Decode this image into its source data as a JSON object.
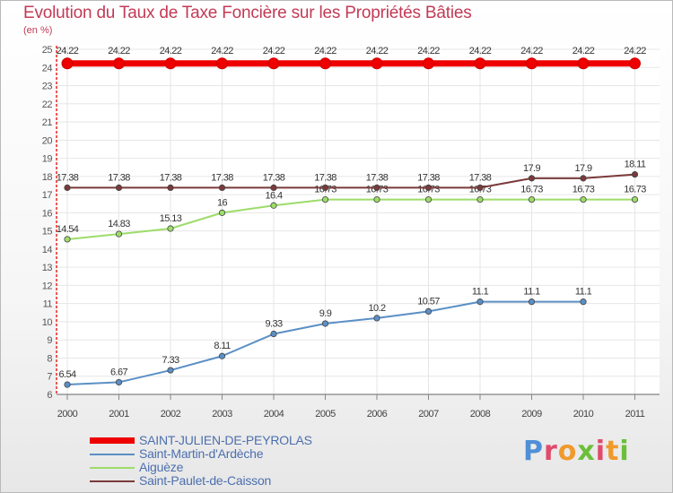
{
  "title": "Evolution du Taux de Taxe Foncière sur les Propriétés Bâties",
  "subtitle": "(en %)",
  "logo": {
    "text": "Proxiti"
  },
  "chart_data": {
    "type": "line",
    "title": "Evolution du Taux de Taxe Foncière sur les Propriétés Bâties",
    "ylabel": "(en %)",
    "xlabel": "",
    "ylim": [
      6,
      25
    ],
    "yticks": [
      "6",
      "7",
      "8",
      "9",
      "10",
      "11",
      "12",
      "13",
      "14",
      "15",
      "16",
      "17",
      "18",
      "19",
      "20",
      "21",
      "22",
      "23",
      "24",
      "25"
    ],
    "x": [
      "2000",
      "2001",
      "2002",
      "2003",
      "2004",
      "2005",
      "2006",
      "2007",
      "2008",
      "2009",
      "2010",
      "2011"
    ],
    "grid": true,
    "legend_position": "bottom-left",
    "series": [
      {
        "name": "SAINT-JULIEN-DE-PEYROLAS",
        "color": "#ee0000",
        "thick": true,
        "values": [
          24.22,
          24.22,
          24.22,
          24.22,
          24.22,
          24.22,
          24.22,
          24.22,
          24.22,
          24.22,
          24.22,
          24.22
        ],
        "labels": [
          "24.22",
          "24.22",
          "24.22",
          "24.22",
          "24.22",
          "24.22",
          "24.22",
          "24.22",
          "24.22",
          "24.22",
          "24.22",
          "24.22"
        ]
      },
      {
        "name": "Saint-Martin-d'Ardèche",
        "color": "#5b8fc5",
        "thick": false,
        "values": [
          6.54,
          6.67,
          7.33,
          8.11,
          9.33,
          9.9,
          10.2,
          10.57,
          11.1,
          11.1,
          11.1,
          null
        ],
        "labels": [
          "6.54",
          "6.67",
          "7.33",
          "8.11",
          "9.33",
          "9.9",
          "10.2",
          "10.57",
          "11.1",
          "11.1",
          "11.1",
          null
        ]
      },
      {
        "name": "Aiguèze",
        "color": "#9ddc6a",
        "thick": false,
        "values": [
          14.54,
          14.83,
          15.13,
          16,
          16.4,
          16.73,
          16.73,
          16.73,
          16.73,
          16.73,
          16.73,
          16.73
        ],
        "labels": [
          "14.54",
          "14.83",
          "15.13",
          "16",
          "16.4",
          "16.73",
          "16.73",
          "16.73",
          "16.73",
          "16.73",
          "16.73",
          "16.73"
        ]
      },
      {
        "name": "Saint-Paulet-de-Caisson",
        "color": "#7a3a3a",
        "thick": false,
        "values": [
          17.38,
          17.38,
          17.38,
          17.38,
          17.38,
          17.38,
          17.38,
          17.38,
          17.38,
          17.9,
          17.9,
          18.11
        ],
        "labels": [
          "17.38",
          "17.38",
          "17.38",
          "17.38",
          "17.38",
          "17.38",
          "17.38",
          "17.38",
          "17.38",
          "17.9",
          "17.9",
          "18.11"
        ]
      }
    ]
  }
}
